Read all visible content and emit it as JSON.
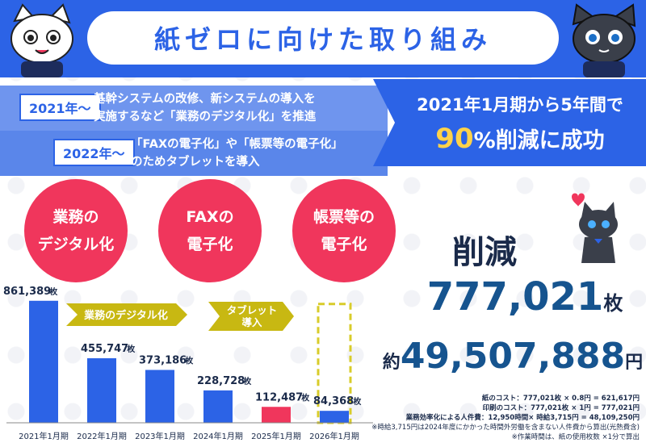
{
  "header": {
    "title": "紙ゼロに向けた取り組み"
  },
  "timeline": [
    {
      "year": "2021年〜",
      "text_line1": "基幹システムの改修、新システムの導入を",
      "text_line2": "実施するなど「業務のデジタル化」を推進"
    },
    {
      "year": "2022年〜",
      "text_line1": "「FAXの電子化」や「帳票等の電子化」",
      "text_line2": "のためタブレットを導入"
    }
  ],
  "result": {
    "line1": "2021年1月期から5年間で",
    "pct": "90",
    "pct_suffix": "%",
    "line2_rest": "削減に成功"
  },
  "circles": [
    {
      "line1": "業務の",
      "line2": "デジタル化"
    },
    {
      "line1": "FAXの",
      "line2": "電子化"
    },
    {
      "line1": "帳票等の",
      "line2": "電子化"
    }
  ],
  "chart_data": {
    "type": "bar",
    "categories": [
      "2021年1月期",
      "2022年1月期",
      "2023年1月期",
      "2024年1月期",
      "2025年1月期",
      "2026年1月期"
    ],
    "values": [
      861389,
      455747,
      373186,
      228728,
      112487,
      84368
    ],
    "value_labels": [
      "861,389",
      "455,747",
      "373,186",
      "228,728",
      "112,487",
      "84,368"
    ],
    "value_unit": "枚",
    "bar_colors": [
      "#2c63e6",
      "#2c63e6",
      "#2c63e6",
      "#2c63e6",
      "#f0365c",
      "#2c63e6"
    ],
    "ylim": [
      0,
      900000
    ],
    "annotations": [
      "業務のデジタル化",
      "タブレット導入"
    ]
  },
  "summary": {
    "reduce_label": "削減",
    "sheets": "777,021",
    "sheets_unit": "枚",
    "yen_prefix": "約",
    "yen": "49,507,888",
    "yen_unit": "円"
  },
  "notes": {
    "line1": "紙のコスト：777,021枚 × 0.8円 = 621,617円",
    "line2": "印刷のコスト：777,021枚 × 1円 = 777,021円",
    "line3": "業務効率化による人件費：12,950時間× 時給3,715円 = 48,109,250円",
    "line4": "※時給3,715円は2024年度にかかった時間外労働を含まない人件費から算出(光熱費含)",
    "line5": "※作業時間は、紙の使用枚数 ×1分で算出"
  },
  "colors": {
    "blue": "#2c63e6",
    "light_blue": "#6f95ee",
    "pink": "#f0365c",
    "olive": "#c8b812",
    "dark_text": "#1a2a4a",
    "navy_number": "#16548f",
    "yellow": "#ffd24a"
  },
  "icons": [
    "white-cat-mascot-icon",
    "black-cat-mascot-icon",
    "black-cat-heart-icon"
  ]
}
